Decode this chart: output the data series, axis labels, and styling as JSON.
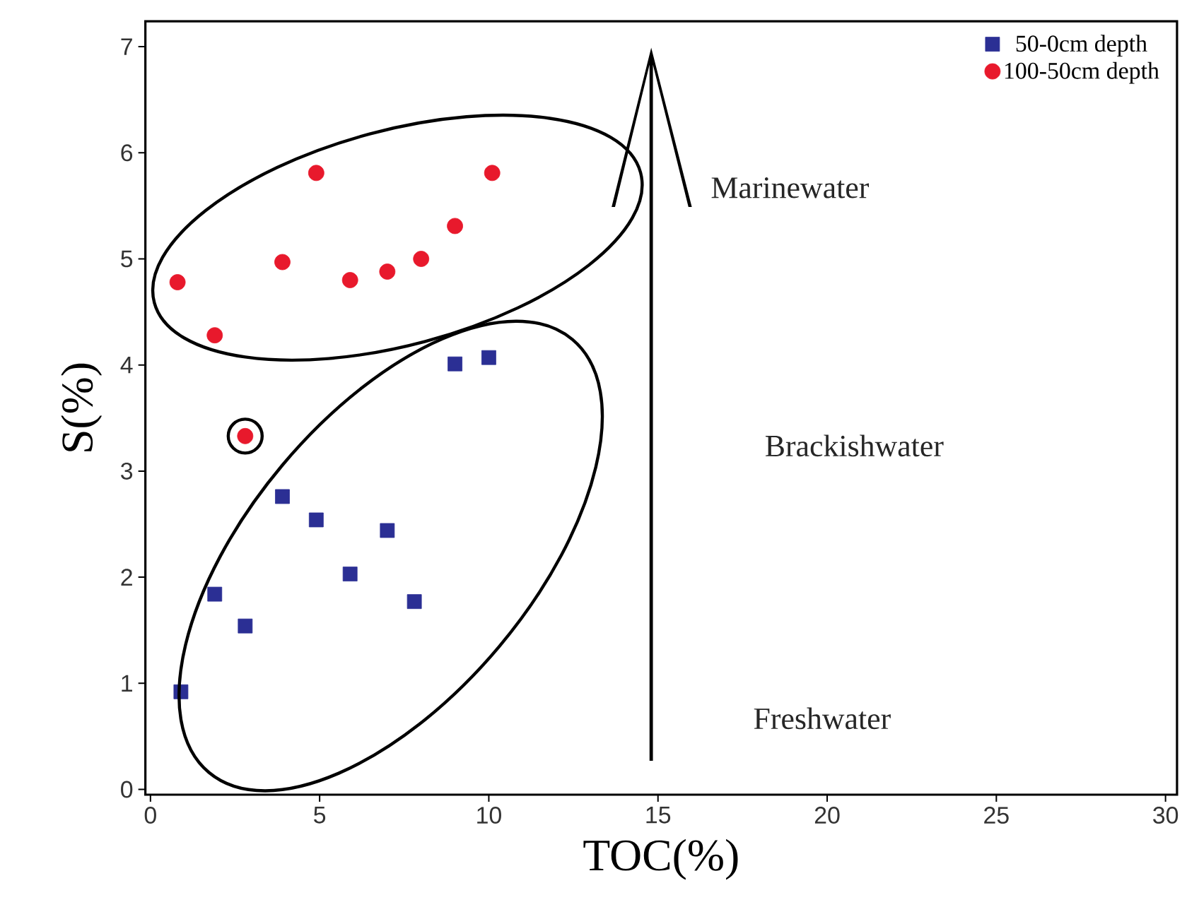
{
  "chart_data": {
    "type": "scatter",
    "xlabel": "TOC(%)",
    "ylabel": "S(%)",
    "xlim": [
      -0.15,
      30.34
    ],
    "ylim": [
      -0.05,
      7.24
    ],
    "xticks": [
      0,
      5,
      10,
      15,
      20,
      25,
      30
    ],
    "yticks": [
      0,
      1,
      2,
      3,
      4,
      5,
      6,
      7
    ],
    "legend": "top right",
    "annotations": [
      "Marinewater",
      "Brackishwater",
      "Freshwater"
    ],
    "series": [
      {
        "name": "50-0cm depth",
        "color": "#2b2f94",
        "marker": "square",
        "x": [
          0.9,
          1.9,
          2.8,
          3.9,
          4.9,
          5.9,
          7.0,
          7.8,
          9.0,
          10.0
        ],
        "values": [
          0.92,
          1.84,
          1.54,
          2.76,
          2.54,
          2.03,
          2.44,
          1.77,
          4.01,
          4.07
        ]
      },
      {
        "name": "100-50cm depth",
        "color": "#e8192c",
        "marker": "circle",
        "x": [
          0.8,
          1.9,
          2.8,
          3.9,
          4.9,
          5.9,
          7.0,
          8.0,
          9.0,
          10.1
        ],
        "values": [
          4.78,
          4.28,
          3.33,
          4.97,
          5.81,
          4.8,
          4.88,
          5.0,
          5.31,
          5.81
        ]
      }
    ]
  }
}
